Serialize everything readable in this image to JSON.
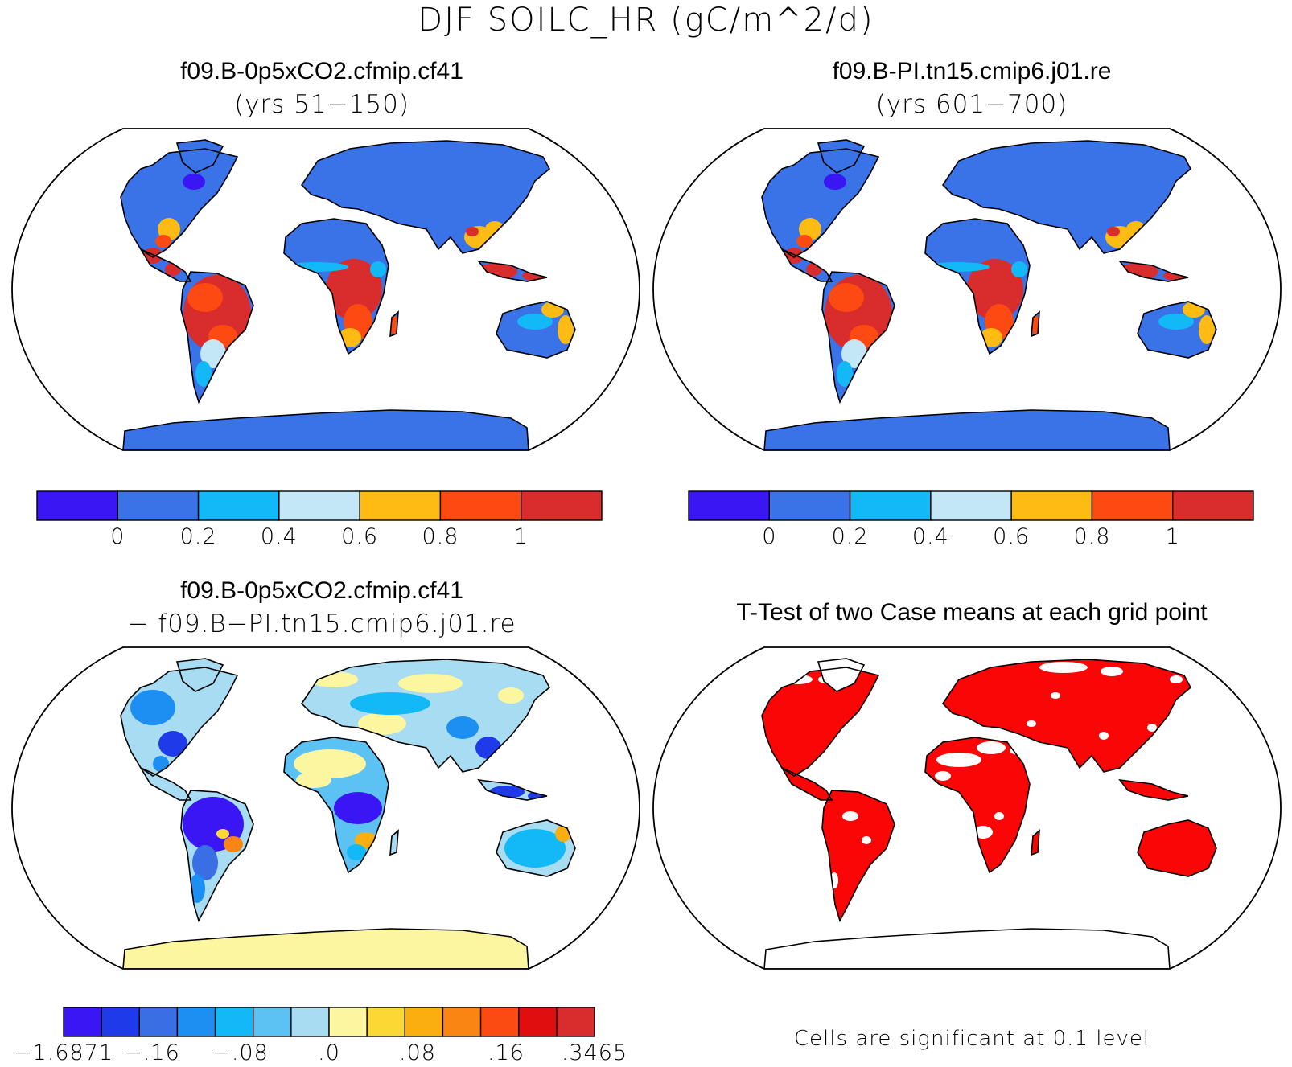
{
  "figure": {
    "title": "DJF SOILC_HR (gC/m^2/d)",
    "footnote": "Cells are significant at 0.1 level"
  },
  "panels": [
    {
      "id": "case1",
      "title": "f09.B-0p5xCO2.cfmip.cf41",
      "subtitle": "(yrs 51−150)",
      "colorbar": {
        "colors": [
          "#3a16f5",
          "#3a72e8",
          "#13b9f7",
          "#c4e7f8",
          "#fdbb13",
          "#fd4a12",
          "#d82d2c"
        ],
        "labels": [
          "0",
          "0.2",
          "0.4",
          "0.6",
          "0.8",
          "1"
        ]
      }
    },
    {
      "id": "case2",
      "title": "f09.B-PI.tn15.cmip6.j01.re",
      "subtitle": "(yrs 601−700)",
      "colorbar": {
        "colors": [
          "#3a16f5",
          "#3a72e8",
          "#13b9f7",
          "#c4e7f8",
          "#fdbb13",
          "#fd4a12",
          "#d82d2c"
        ],
        "labels": [
          "0",
          "0.2",
          "0.4",
          "0.6",
          "0.8",
          "1"
        ]
      }
    },
    {
      "id": "diff",
      "title": "f09.B-0p5xCO2.cfmip.cf41",
      "subtitle": "− f09.B−PI.tn15.cmip6.j01.re",
      "colorbar": {
        "colors": [
          "#3a16f5",
          "#1f3ae8",
          "#3a6ee4",
          "#1e8ff2",
          "#13b9f7",
          "#5cc2f4",
          "#a7dcf2",
          "#fdf6a0",
          "#fcd835",
          "#fbae10",
          "#fb8512",
          "#fb4a12",
          "#e00e0e",
          "#d82d2c"
        ],
        "labels": [
          "−1.6871",
          "−.16",
          "−.08",
          ".0",
          ".08",
          ".16",
          ".3465"
        ]
      }
    },
    {
      "id": "ttest",
      "title": "T-Test of two Case means at each grid point"
    }
  ],
  "colors": {
    "ocean": "#ffffff",
    "significant": "#fa0606",
    "outline": "#000000"
  }
}
